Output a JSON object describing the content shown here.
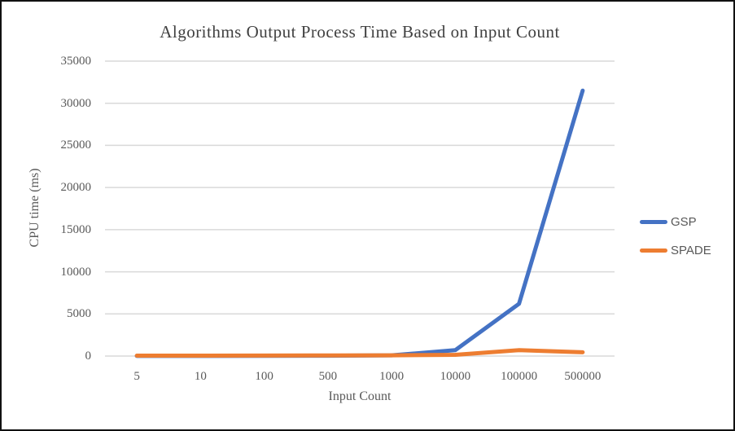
{
  "window": {
    "background": "#ffffff",
    "border_color": "#111111"
  },
  "chart_data": {
    "type": "line",
    "title": "Algorithms Output Process Time Based on Input Count",
    "xlabel": "Input Count",
    "ylabel": "CPU time (ms)",
    "categories": [
      "5",
      "10",
      "100",
      "500",
      "1000",
      "10000",
      "100000",
      "500000"
    ],
    "series": [
      {
        "name": "GSP",
        "color": "#4472C4",
        "values": [
          10,
          12,
          20,
          35,
          80,
          700,
          6200,
          31500
        ]
      },
      {
        "name": "SPADE",
        "color": "#ED7D31",
        "values": [
          50,
          50,
          60,
          70,
          80,
          150,
          700,
          450
        ]
      }
    ],
    "ylim": [
      0,
      35000
    ],
    "ytick_step": 5000,
    "yticks": [
      "0",
      "5000",
      "10000",
      "15000",
      "20000",
      "25000",
      "30000",
      "35000"
    ],
    "grid": "horizontal",
    "gridline_color": "#D9D9D9",
    "tick_color": "#595959",
    "title_color": "#404040",
    "legend_position": "right",
    "legend_entries": [
      "GSP",
      "SPADE"
    ]
  }
}
